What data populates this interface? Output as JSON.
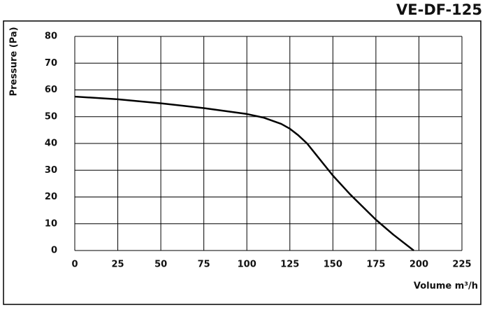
{
  "chart_data": {
    "type": "line",
    "title": "VE-DF-125",
    "x_label": "Volume m³/h",
    "y_label": "Pressure (Pa)",
    "xlim": [
      0,
      225
    ],
    "xticks": [
      0,
      25,
      50,
      75,
      100,
      125,
      150,
      175,
      200,
      225
    ],
    "ylim": [
      0,
      80
    ],
    "yticks": [
      0,
      10,
      20,
      30,
      40,
      50,
      60,
      70,
      80
    ],
    "grid": true,
    "series": [
      {
        "color": "#000000",
        "x": [
          0,
          25,
          50,
          75,
          100,
          110,
          120,
          125,
          130,
          135,
          140,
          145,
          150,
          160,
          175,
          185,
          197
        ],
        "values": [
          57.5,
          56.5,
          55,
          53.2,
          51,
          49.6,
          47.3,
          45.5,
          43,
          40,
          36,
          32,
          28,
          21,
          11.5,
          6,
          0
        ]
      }
    ]
  }
}
